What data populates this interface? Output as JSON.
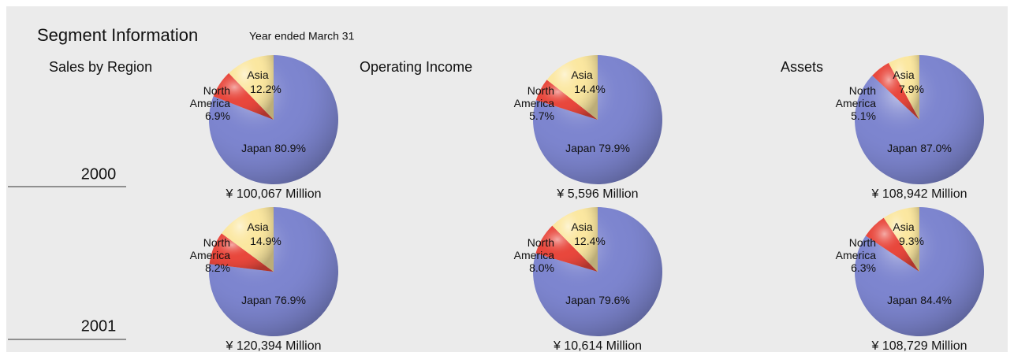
{
  "header": {
    "title": "Segment Information",
    "subtitle": "Year ended March 31"
  },
  "columns": [
    "Sales by Region",
    "Operating Income",
    "Assets"
  ],
  "years": [
    "2000",
    "2001"
  ],
  "chart_data": [
    {
      "type": "pie",
      "categories": [
        "Japan",
        "North America",
        "Asia"
      ],
      "values": [
        80.9,
        6.9,
        12.2
      ],
      "value_labels": [
        "80.9%",
        "6.9%",
        "12.2%"
      ],
      "colors": [
        "#7d85cf",
        "#e8473c",
        "#fbe7a0"
      ],
      "caption": "¥ 100,067 Million"
    },
    {
      "type": "pie",
      "categories": [
        "Japan",
        "North America",
        "Asia"
      ],
      "values": [
        79.9,
        5.7,
        14.4
      ],
      "value_labels": [
        "79.9%",
        "5.7%",
        "14.4%"
      ],
      "colors": [
        "#7d85cf",
        "#e8473c",
        "#fbe7a0"
      ],
      "caption": "¥ 5,596 Million"
    },
    {
      "type": "pie",
      "categories": [
        "Japan",
        "North America",
        "Asia"
      ],
      "values": [
        87.0,
        5.1,
        7.9
      ],
      "value_labels": [
        "87.0%",
        "5.1%",
        "7.9%"
      ],
      "colors": [
        "#7d85cf",
        "#e8473c",
        "#fbe7a0"
      ],
      "caption": "¥ 108,942 Million"
    },
    {
      "type": "pie",
      "categories": [
        "Japan",
        "North America",
        "Asia"
      ],
      "values": [
        76.9,
        8.2,
        14.9
      ],
      "value_labels": [
        "76.9%",
        "8.2%",
        "14.9%"
      ],
      "colors": [
        "#7d85cf",
        "#e8473c",
        "#fbe7a0"
      ],
      "caption": "¥ 120,394 Million"
    },
    {
      "type": "pie",
      "categories": [
        "Japan",
        "North America",
        "Asia"
      ],
      "values": [
        79.6,
        8.0,
        12.4
      ],
      "value_labels": [
        "79.6%",
        "8.0%",
        "12.4%"
      ],
      "colors": [
        "#7d85cf",
        "#e8473c",
        "#fbe7a0"
      ],
      "caption": "¥ 10,614 Million"
    },
    {
      "type": "pie",
      "categories": [
        "Japan",
        "North America",
        "Asia"
      ],
      "values": [
        84.4,
        6.3,
        9.3
      ],
      "value_labels": [
        "84.4%",
        "6.3%",
        "9.3%"
      ],
      "colors": [
        "#7d85cf",
        "#e8473c",
        "#fbe7a0"
      ],
      "caption": "¥ 108,729 Million"
    }
  ]
}
